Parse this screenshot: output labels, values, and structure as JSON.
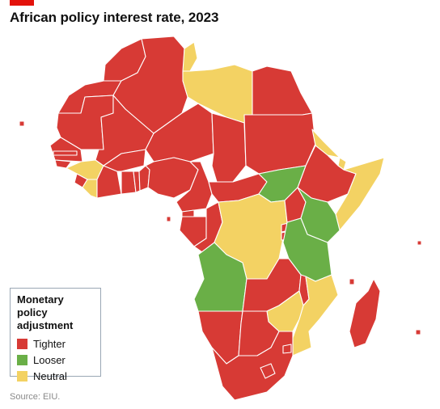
{
  "header": {
    "title": "African policy interest rate, 2023"
  },
  "colors": {
    "tighter": "#d73a35",
    "looser": "#6aaf47",
    "neutral": "#f3d263",
    "accent": "#e3120b"
  },
  "legend": {
    "title": "Monetary policy adjustment",
    "items": [
      {
        "label": "Tighter",
        "status": "tighter"
      },
      {
        "label": "Looser",
        "status": "looser"
      },
      {
        "label": "Neutral",
        "status": "neutral"
      }
    ]
  },
  "countries": [
    {
      "name": "Morocco",
      "status": "tighter"
    },
    {
      "name": "Western Sahara",
      "status": "tighter"
    },
    {
      "name": "Algeria",
      "status": "tighter"
    },
    {
      "name": "Tunisia",
      "status": "neutral"
    },
    {
      "name": "Libya",
      "status": "neutral"
    },
    {
      "name": "Egypt",
      "status": "tighter"
    },
    {
      "name": "Mauritania",
      "status": "tighter"
    },
    {
      "name": "Mali",
      "status": "tighter"
    },
    {
      "name": "Niger",
      "status": "tighter"
    },
    {
      "name": "Chad",
      "status": "tighter"
    },
    {
      "name": "Sudan",
      "status": "tighter"
    },
    {
      "name": "Eritrea",
      "status": "neutral"
    },
    {
      "name": "Djibouti",
      "status": "neutral"
    },
    {
      "name": "Ethiopia",
      "status": "tighter"
    },
    {
      "name": "Somalia",
      "status": "neutral"
    },
    {
      "name": "Senegal",
      "status": "tighter"
    },
    {
      "name": "Gambia",
      "status": "tighter"
    },
    {
      "name": "Guinea-Bissau",
      "status": "tighter"
    },
    {
      "name": "Guinea",
      "status": "neutral"
    },
    {
      "name": "Sierra Leone",
      "status": "tighter"
    },
    {
      "name": "Liberia",
      "status": "neutral"
    },
    {
      "name": "Ivory Coast",
      "status": "tighter"
    },
    {
      "name": "Burkina Faso",
      "status": "tighter"
    },
    {
      "name": "Ghana",
      "status": "tighter"
    },
    {
      "name": "Togo",
      "status": "tighter"
    },
    {
      "name": "Benin",
      "status": "tighter"
    },
    {
      "name": "Nigeria",
      "status": "tighter"
    },
    {
      "name": "Cameroon",
      "status": "tighter"
    },
    {
      "name": "Central African Republic",
      "status": "tighter"
    },
    {
      "name": "South Sudan",
      "status": "looser"
    },
    {
      "name": "Equatorial Guinea",
      "status": "tighter"
    },
    {
      "name": "Gabon",
      "status": "tighter"
    },
    {
      "name": "Republic of the Congo",
      "status": "tighter"
    },
    {
      "name": "DR Congo",
      "status": "neutral"
    },
    {
      "name": "Uganda",
      "status": "tighter"
    },
    {
      "name": "Kenya",
      "status": "looser"
    },
    {
      "name": "Rwanda",
      "status": "tighter"
    },
    {
      "name": "Burundi",
      "status": "tighter"
    },
    {
      "name": "Tanzania",
      "status": "looser"
    },
    {
      "name": "Angola",
      "status": "looser"
    },
    {
      "name": "Zambia",
      "status": "tighter"
    },
    {
      "name": "Malawi",
      "status": "tighter"
    },
    {
      "name": "Mozambique",
      "status": "neutral"
    },
    {
      "name": "Zimbabwe",
      "status": "neutral"
    },
    {
      "name": "Namibia",
      "status": "tighter"
    },
    {
      "name": "Botswana",
      "status": "tighter"
    },
    {
      "name": "South Africa",
      "status": "tighter"
    },
    {
      "name": "Eswatini",
      "status": "tighter"
    },
    {
      "name": "Lesotho",
      "status": "tighter"
    },
    {
      "name": "Madagascar",
      "status": "tighter"
    },
    {
      "name": "Seychelles",
      "status": "tighter"
    },
    {
      "name": "Comoros",
      "status": "tighter"
    },
    {
      "name": "Mauritius",
      "status": "tighter"
    },
    {
      "name": "Sao Tome and Principe",
      "status": "tighter"
    },
    {
      "name": "Cape Verde",
      "status": "tighter"
    }
  ],
  "footer": {
    "source": "Source: EIU."
  }
}
